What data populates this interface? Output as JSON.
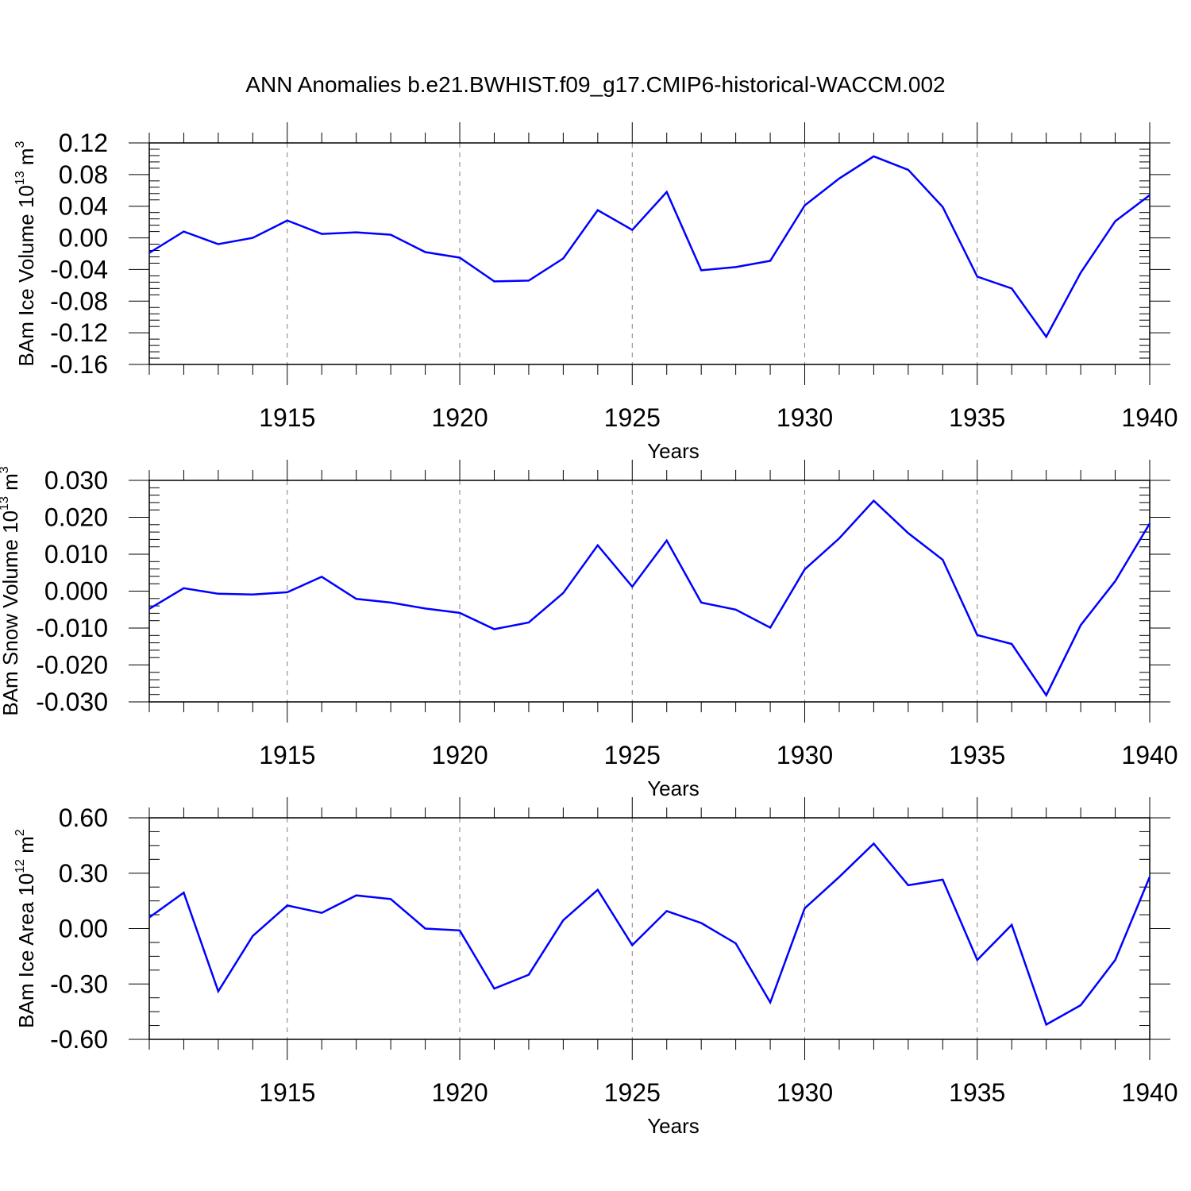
{
  "figure": {
    "title": "ANN Anomalies b.e21.BWHIST.f09_g17.CMIP6-historical-WACCM.002",
    "line_color": "#0000ff",
    "grid_color": "#7f7f7f"
  },
  "chart_data": [
    {
      "type": "line",
      "ylabel": "BAm Ice Volume 10",
      "ylabel_sup": "13",
      "ylabel_unit": " m",
      "ylabel_unit_sup": "3",
      "xlabel": "Years",
      "xlim": [
        1911,
        1940
      ],
      "ylim": [
        -0.16,
        0.12
      ],
      "yticks": [
        0.12,
        0.08,
        0.04,
        0.0,
        -0.04,
        -0.08,
        -0.12,
        -0.16
      ],
      "ytick_labels": [
        "0.12",
        "0.08",
        "0.04",
        "0.00",
        "-0.04",
        "-0.08",
        "-0.12",
        "-0.16"
      ],
      "xticks": [
        1915,
        1920,
        1925,
        1930,
        1935,
        1940
      ],
      "xtick_labels": [
        "1915",
        "1920",
        "1925",
        "1930",
        "1935",
        "1940"
      ],
      "x": [
        1911,
        1912,
        1913,
        1914,
        1915,
        1916,
        1917,
        1918,
        1919,
        1920,
        1921,
        1922,
        1923,
        1924,
        1925,
        1926,
        1927,
        1928,
        1929,
        1930,
        1931,
        1932,
        1933,
        1934,
        1935,
        1936,
        1937,
        1938,
        1939,
        1940
      ],
      "y": [
        -0.019,
        0.008,
        -0.008,
        0.0,
        0.022,
        0.005,
        0.007,
        0.004,
        -0.018,
        -0.025,
        -0.055,
        -0.054,
        -0.026,
        0.035,
        0.01,
        0.058,
        -0.041,
        -0.037,
        -0.029,
        0.041,
        0.075,
        0.103,
        0.086,
        0.039,
        -0.049,
        -0.064,
        -0.125,
        -0.044,
        0.021,
        0.054
      ]
    },
    {
      "type": "line",
      "ylabel": "BAm Snow Volume 10",
      "ylabel_sup": "13",
      "ylabel_unit": " m",
      "ylabel_unit_sup": "3",
      "xlabel": "Years",
      "xlim": [
        1911,
        1940
      ],
      "ylim": [
        -0.03,
        0.03
      ],
      "yticks": [
        0.03,
        0.02,
        0.01,
        0.0,
        -0.01,
        -0.02,
        -0.03
      ],
      "ytick_labels": [
        "0.030",
        "0.020",
        "0.010",
        "0.000",
        "-0.010",
        "-0.020",
        "-0.030"
      ],
      "xticks": [
        1915,
        1920,
        1925,
        1930,
        1935,
        1940
      ],
      "xtick_labels": [
        "1915",
        "1920",
        "1925",
        "1930",
        "1935",
        "1940"
      ],
      "x": [
        1911,
        1912,
        1913,
        1914,
        1915,
        1916,
        1917,
        1918,
        1919,
        1920,
        1921,
        1922,
        1923,
        1924,
        1925,
        1926,
        1927,
        1928,
        1929,
        1930,
        1931,
        1932,
        1933,
        1934,
        1935,
        1936,
        1937,
        1938,
        1939,
        1940
      ],
      "y": [
        -0.0048,
        0.0008,
        -0.0007,
        -0.0009,
        -0.0003,
        0.0039,
        -0.0021,
        -0.0031,
        -0.0047,
        -0.0059,
        -0.0103,
        -0.0085,
        -0.0005,
        0.0124,
        0.0012,
        0.0137,
        -0.0031,
        -0.005,
        -0.0099,
        0.0059,
        0.0143,
        0.0245,
        0.0157,
        0.0085,
        -0.0119,
        -0.0143,
        -0.0282,
        -0.0092,
        0.0027,
        0.0183
      ]
    },
    {
      "type": "line",
      "ylabel": "BAm Ice Area 10",
      "ylabel_sup": "12",
      "ylabel_unit": " m",
      "ylabel_unit_sup": "2",
      "xlabel": "Years",
      "xlim": [
        1911,
        1940
      ],
      "ylim": [
        -0.6,
        0.6
      ],
      "yticks": [
        0.6,
        0.3,
        0.0,
        -0.3,
        -0.6
      ],
      "ytick_labels": [
        "0.60",
        "0.30",
        "0.00",
        "-0.30",
        "-0.60"
      ],
      "xticks": [
        1915,
        1920,
        1925,
        1930,
        1935,
        1940
      ],
      "xtick_labels": [
        "1915",
        "1920",
        "1925",
        "1930",
        "1935",
        "1940"
      ],
      "x": [
        1911,
        1912,
        1913,
        1914,
        1915,
        1916,
        1917,
        1918,
        1919,
        1920,
        1921,
        1922,
        1923,
        1924,
        1925,
        1926,
        1927,
        1928,
        1929,
        1930,
        1931,
        1932,
        1933,
        1934,
        1935,
        1936,
        1937,
        1938,
        1939,
        1940
      ],
      "y": [
        0.06,
        0.195,
        -0.34,
        -0.04,
        0.125,
        0.085,
        0.18,
        0.16,
        0.0,
        -0.01,
        -0.325,
        -0.25,
        0.045,
        0.21,
        -0.09,
        0.095,
        0.03,
        -0.08,
        -0.4,
        0.11,
        0.28,
        0.46,
        0.235,
        0.265,
        -0.17,
        0.02,
        -0.52,
        -0.415,
        -0.17,
        0.28
      ]
    }
  ]
}
